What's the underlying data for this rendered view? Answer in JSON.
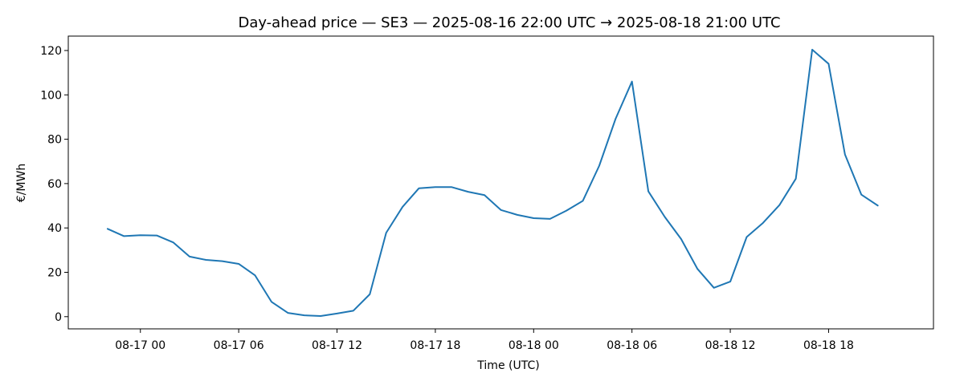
{
  "chart_data": {
    "type": "line",
    "title": "Day-ahead price — SE3 — 2025-08-16 22:00 UTC → 2025-08-18 21:00 UTC",
    "xlabel": "Time (UTC)",
    "ylabel": "€/MWh",
    "x_start": "2025-08-16 22:00",
    "x_step_hours": 1,
    "xlim": [
      "2025-08-16 19:36",
      "2025-08-19 00:24"
    ],
    "ylim": [
      -5.5,
      126.5
    ],
    "grid": false,
    "x_ticks": [
      {
        "value": "2025-08-17 00:00",
        "label": "08-17 00"
      },
      {
        "value": "2025-08-17 06:00",
        "label": "08-17 06"
      },
      {
        "value": "2025-08-17 12:00",
        "label": "08-17 12"
      },
      {
        "value": "2025-08-17 18:00",
        "label": "08-17 18"
      },
      {
        "value": "2025-08-18 00:00",
        "label": "08-18 00"
      },
      {
        "value": "2025-08-18 06:00",
        "label": "08-18 06"
      },
      {
        "value": "2025-08-18 12:00",
        "label": "08-18 12"
      },
      {
        "value": "2025-08-18 18:00",
        "label": "08-18 18"
      }
    ],
    "y_ticks": [
      0,
      20,
      40,
      60,
      80,
      100,
      120
    ],
    "series": [
      {
        "name": "",
        "color": "#1f77b4",
        "values": [
          39.6,
          36.3,
          36.7,
          36.6,
          33.5,
          27.1,
          25.6,
          25.0,
          23.8,
          18.6,
          6.7,
          1.7,
          0.6,
          0.3,
          1.4,
          2.7,
          10.1,
          37.8,
          49.5,
          57.9,
          58.4,
          58.4,
          56.3,
          54.8,
          48.1,
          45.9,
          44.4,
          44.1,
          47.8,
          52.2,
          68.0,
          89.2,
          106.0,
          56.5,
          45.0,
          35.0,
          21.5,
          13.0,
          15.8,
          35.9,
          42.3,
          50.3,
          62.2,
          120.4,
          114.0,
          73.1,
          55.0,
          50.1
        ]
      }
    ]
  }
}
